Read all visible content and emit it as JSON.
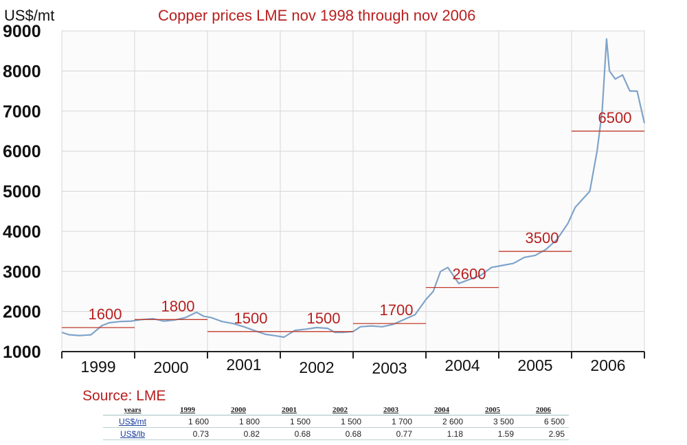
{
  "chart_data": {
    "type": "line",
    "title": "Copper prices LME nov 1998 through nov 2006",
    "ylabel": "US$/mt",
    "ylim": [
      1000,
      9000
    ],
    "yticks": [
      1000,
      2000,
      3000,
      4000,
      5000,
      6000,
      7000,
      8000,
      9000
    ],
    "xlim": [
      1998.9,
      2006.9
    ],
    "x_categories": [
      "1999",
      "2000",
      "2001",
      "2002",
      "2003",
      "2004",
      "2005",
      "2006"
    ],
    "grid": true,
    "line_color": "#7fa3c9",
    "series": [
      {
        "x": [
          1998.9,
          1999.0,
          1999.15,
          1999.3,
          1999.45,
          1999.55,
          1999.7,
          1999.85,
          2000.0,
          2000.15,
          2000.3,
          2000.45,
          2000.6,
          2000.75,
          2000.85,
          2000.95,
          2001.1,
          2001.25,
          2001.4,
          2001.55,
          2001.7,
          2001.85,
          2001.95,
          2002.1,
          2002.25,
          2002.4,
          2002.55,
          2002.65,
          2002.75,
          2002.9,
          2003.0,
          2003.15,
          2003.3,
          2003.45,
          2003.6,
          2003.75,
          2003.9,
          2004.0,
          2004.1,
          2004.2,
          2004.35,
          2004.5,
          2004.65,
          2004.8,
          2004.95,
          2005.1,
          2005.25,
          2005.4,
          2005.55,
          2005.7,
          2005.85,
          2005.95,
          2006.05,
          2006.15,
          2006.25,
          2006.32,
          2006.38,
          2006.42,
          2006.5,
          2006.6,
          2006.7,
          2006.8,
          2006.9
        ],
        "y": [
          1480,
          1420,
          1400,
          1420,
          1650,
          1720,
          1750,
          1760,
          1800,
          1820,
          1760,
          1790,
          1850,
          1980,
          1880,
          1850,
          1750,
          1700,
          1620,
          1520,
          1430,
          1390,
          1360,
          1530,
          1560,
          1600,
          1580,
          1480,
          1480,
          1500,
          1620,
          1640,
          1620,
          1680,
          1800,
          1920,
          2300,
          2500,
          3000,
          3100,
          2700,
          2800,
          2900,
          3100,
          3150,
          3200,
          3350,
          3400,
          3550,
          3800,
          4200,
          4600,
          4800,
          5000,
          6000,
          7000,
          8800,
          8000,
          7800,
          7900,
          7500,
          7500,
          6700
        ]
      }
    ],
    "averages": [
      {
        "year": "1999",
        "value": 1600,
        "label": "1600"
      },
      {
        "year": "2000",
        "value": 1800,
        "label": "1800"
      },
      {
        "year": "2001",
        "value": 1500,
        "label": "1500"
      },
      {
        "year": "2002",
        "value": 1500,
        "label": "1500"
      },
      {
        "year": "2003",
        "value": 1700,
        "label": "1700"
      },
      {
        "year": "2004",
        "value": 2600,
        "label": "2600"
      },
      {
        "year": "2005",
        "value": 3500,
        "label": "3500"
      },
      {
        "year": "2006",
        "value": 6500,
        "label": "6500"
      }
    ],
    "average_line_color": "#c0392b"
  },
  "source": "Source: LME",
  "table": {
    "corner": "years",
    "years": [
      "1999",
      "2000",
      "2001",
      "2002",
      "2003",
      "2004",
      "2005",
      "2006"
    ],
    "rows": [
      {
        "label": "US$/mt",
        "values": [
          "1 600",
          "1 800",
          "1 500",
          "1 500",
          "1 700",
          "2 600",
          "3 500",
          "6 500"
        ]
      },
      {
        "label": "US$/lb",
        "values": [
          "0.73",
          "0.82",
          "0.68",
          "0.68",
          "0.77",
          "1.18",
          "1.59",
          "2.95"
        ]
      }
    ]
  }
}
